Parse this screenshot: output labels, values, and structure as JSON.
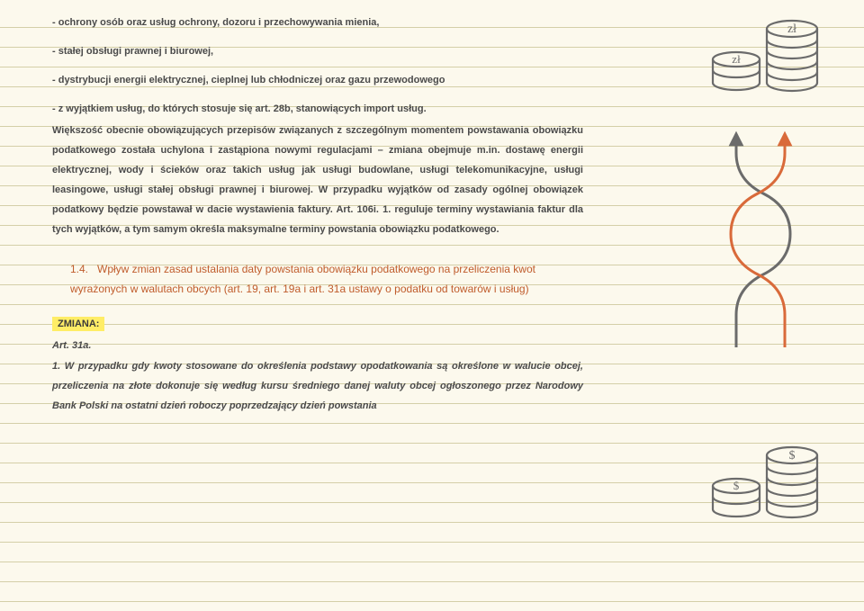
{
  "colors": {
    "background": "#fcf9ed",
    "rule": "#d4cfa8",
    "text": "#4a4a4a",
    "accent": "#c05c2c",
    "highlight": "#ffed66",
    "iconStroke": "#6b6b6b",
    "iconOrange": "#d96a3a"
  },
  "ruleSpacing": 22,
  "ruleFirstY": 30,
  "ruleCount": 30,
  "body": {
    "bullet1": "- ochrony osób oraz usług ochrony, dozoru i przechowywania mienia,",
    "bullet2": "- stałej obsługi prawnej i biurowej,",
    "bullet3": "- dystrybucji energii elektrycznej, cieplnej lub chłodniczej oraz gazu przewodowego",
    "bullet4": "- z wyjątkiem usług, do których stosuje się art. 28b, stanowiących import usług.",
    "para1": "Większość obecnie obowiązujących przepisów związanych z szczególnym momentem powstawania obowiązku podatkowego została uchylona i zastąpiona nowymi regulacjami – zmiana obejmuje m.in. dostawę energii elektrycznej, wody i ścieków oraz takich usług jak usługi budowlane, usługi telekomunikacyjne, usługi leasingowe, usługi stałej obsługi prawnej i biurowej. W przypadku wyjątków od zasady ogólnej obowiązek podatkowy będzie powstawał w dacie wystawienia faktury. Art. 106i. 1. reguluje terminy wystawiania faktur dla tych wyjątków, a tym samym określa maksymalne terminy powstania obowiązku podatkowego."
  },
  "subhead": {
    "num": "1.4.",
    "text": "Wpływ zmian zasad ustalania daty powstania obowiązku podatkowego na przeliczenia kwot wyrażonych w walutach obcych (art. 19, art. 19a i art. 31a ustawy o podatku od towarów i usług)"
  },
  "zmiana_label": "ZMIANA:",
  "art_ref": "Art. 31a.",
  "art_text": "1. W przypadku gdy kwoty stosowane do określenia podstawy opodatkowania są określone w walucie obcej, przeliczenia na złote dokonuje się według kursu średniego danej waluty obcej ogłoszonego przez Narodowy Bank Polski na ostatni dzień roboczy poprzedzający dzień powstania",
  "icons": {
    "coin_zl": "zł",
    "coin_dollar": "$"
  }
}
